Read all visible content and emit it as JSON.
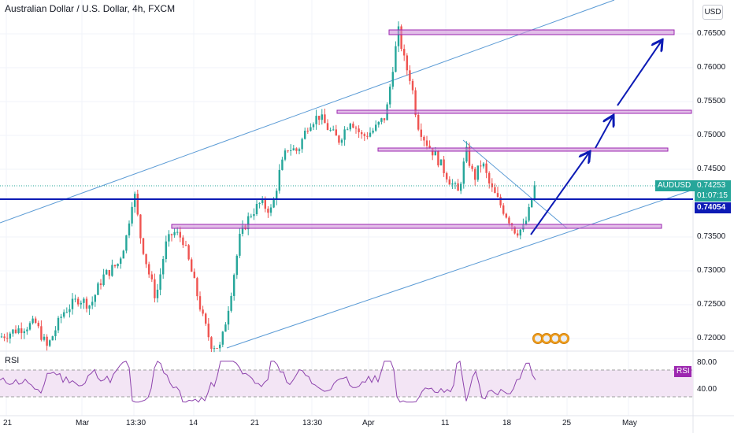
{
  "header": {
    "title": "Australian Dollar / U.S. Dollar, 4h, FXCM",
    "currency_button": "USD"
  },
  "price_axis": {
    "ticks": [
      "0.76500",
      "0.76000",
      "0.75500",
      "0.75000",
      "0.74500",
      "0.73500",
      "0.73000",
      "0.72500",
      "0.72000"
    ]
  },
  "time_axis": {
    "ticks": [
      "21",
      "Mar",
      "13:30",
      "14",
      "21",
      "13:30",
      "Apr",
      "11",
      "18",
      "25",
      "May"
    ]
  },
  "tags": {
    "symbol": "AUDUSD",
    "last_price": "0.74253",
    "countdown": "01:07:15",
    "line_price": "0.74054",
    "rsi_label": "RSI"
  },
  "rsi_panel": {
    "title": "RSI",
    "ticks": [
      "80.00",
      "40.00"
    ]
  },
  "colors": {
    "up": "#26a69a",
    "down": "#ef5350",
    "zone": "#9c27b0",
    "channel": "#5b9bd5",
    "arrow": "#0d1bb5",
    "rsi": "#8e44ad"
  },
  "icons": [
    "calendar-event-icon",
    "calendar-event-icon",
    "calendar-event-icon",
    "calendar-event-icon"
  ],
  "chart_data": {
    "type": "candlestick",
    "symbol": "AUDUSD",
    "timeframe": "4h",
    "ylim": [
      0.7185,
      0.7685
    ],
    "last_price": 0.74253,
    "horizontal_line": 0.74054,
    "zones": [
      0.765,
      0.7535,
      0.7478,
      0.7365
    ],
    "close_path": [
      [
        0,
        0.7205
      ],
      [
        20,
        0.7215
      ],
      [
        45,
        0.7225
      ],
      [
        60,
        0.719
      ],
      [
        80,
        0.724
      ],
      [
        100,
        0.726
      ],
      [
        115,
        0.725
      ],
      [
        130,
        0.729
      ],
      [
        150,
        0.731
      ],
      [
        160,
        0.7345
      ],
      [
        170,
        0.7415
      ],
      [
        178,
        0.735
      ],
      [
        188,
        0.73
      ],
      [
        198,
        0.726
      ],
      [
        210,
        0.7335
      ],
      [
        220,
        0.7355
      ],
      [
        232,
        0.7345
      ],
      [
        245,
        0.729
      ],
      [
        258,
        0.723
      ],
      [
        268,
        0.7195
      ],
      [
        280,
        0.719
      ],
      [
        292,
        0.726
      ],
      [
        305,
        0.735
      ],
      [
        318,
        0.738
      ],
      [
        330,
        0.7395
      ],
      [
        345,
        0.7385
      ],
      [
        355,
        0.744
      ],
      [
        365,
        0.7475
      ],
      [
        378,
        0.747
      ],
      [
        392,
        0.751
      ],
      [
        405,
        0.752
      ],
      [
        418,
        0.75
      ],
      [
        430,
        0.7485
      ],
      [
        445,
        0.7515
      ],
      [
        460,
        0.749
      ],
      [
        475,
        0.75
      ],
      [
        490,
        0.752
      ],
      [
        500,
        0.76
      ],
      [
        506,
        0.764
      ],
      [
        514,
        0.7595
      ],
      [
        522,
        0.757
      ],
      [
        530,
        0.751
      ],
      [
        540,
        0.7485
      ],
      [
        555,
        0.746
      ],
      [
        570,
        0.743
      ],
      [
        582,
        0.741
      ],
      [
        592,
        0.747
      ],
      [
        602,
        0.743
      ],
      [
        612,
        0.7455
      ],
      [
        622,
        0.742
      ],
      [
        632,
        0.74
      ],
      [
        645,
        0.7375
      ],
      [
        655,
        0.7355
      ],
      [
        665,
        0.736
      ],
      [
        672,
        0.7385
      ],
      [
        680,
        0.7425
      ]
    ],
    "rsi": {
      "levels": [
        70,
        30
      ],
      "ticks": [
        80,
        40
      ]
    }
  }
}
